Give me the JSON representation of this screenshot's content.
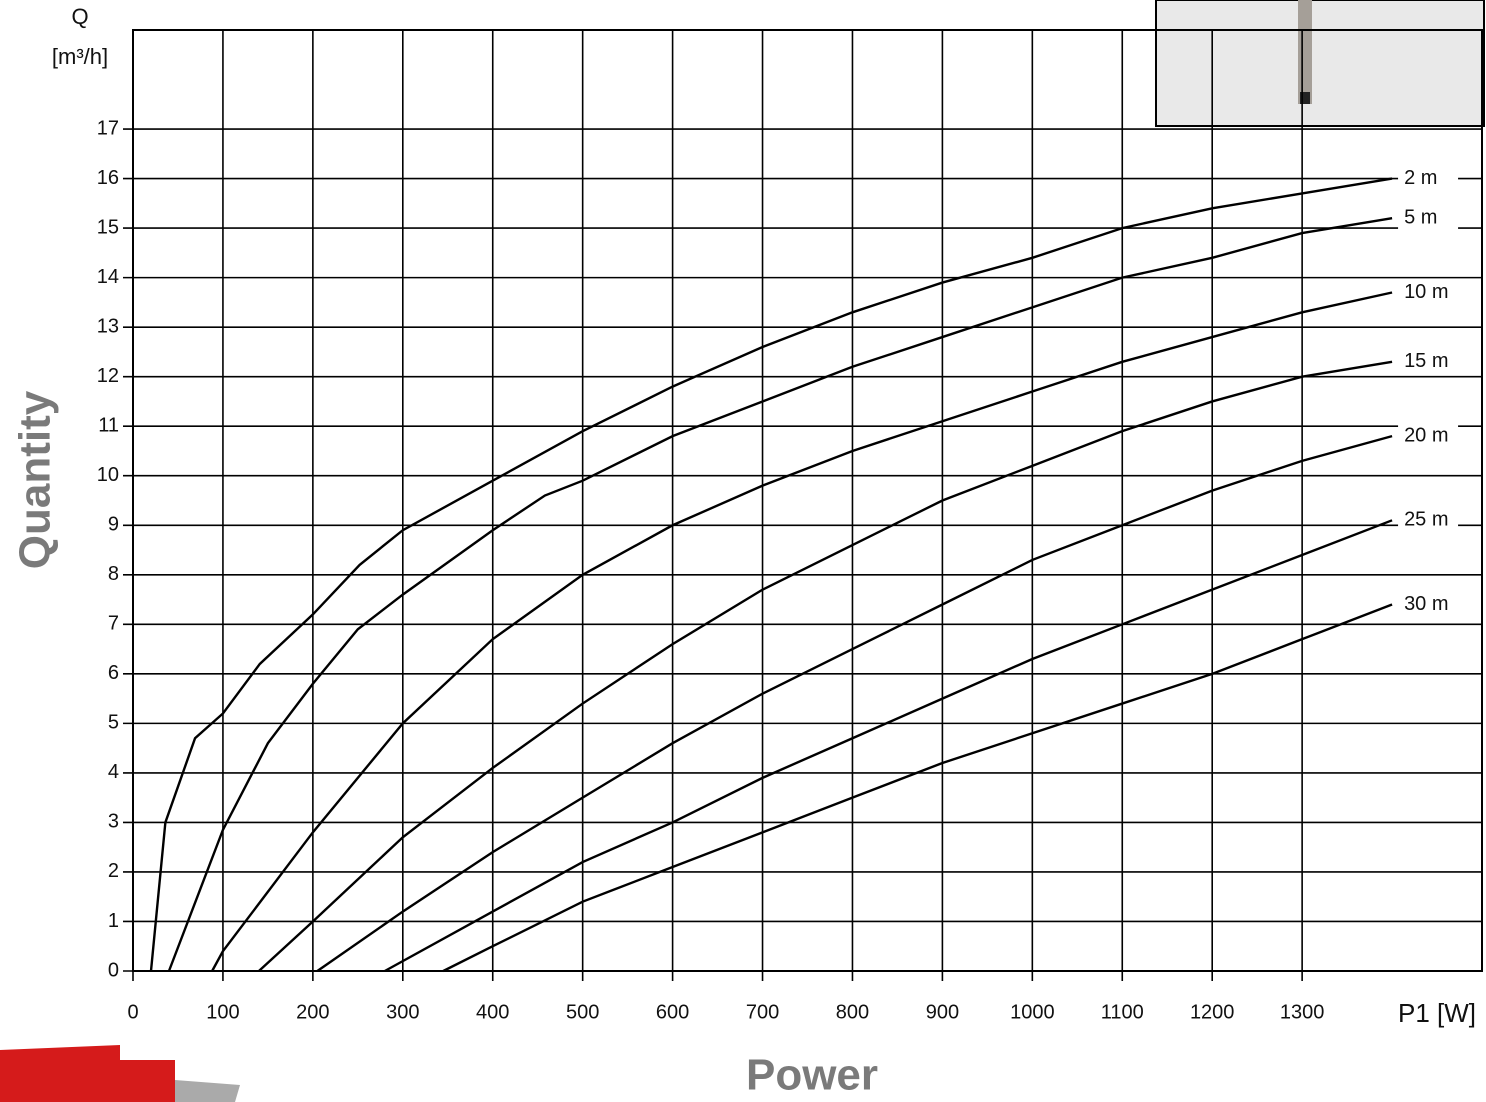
{
  "chart_data": {
    "type": "line",
    "x_title": "Power",
    "y_title": "Quantity",
    "x_axis_label": "P1 [W]",
    "y_axis_label_lines": [
      "Q",
      "[m³/h]"
    ],
    "xlim": [
      0,
      1500
    ],
    "ylim": [
      0,
      19
    ],
    "xticks": [
      0,
      100,
      200,
      300,
      400,
      500,
      600,
      700,
      800,
      900,
      1000,
      1100,
      1200,
      1300
    ],
    "yticks": [
      0,
      1,
      2,
      3,
      4,
      5,
      6,
      7,
      8,
      9,
      10,
      11,
      12,
      13,
      14,
      15,
      16,
      17
    ],
    "grid": true,
    "series": [
      {
        "name": "2 m",
        "color": "#000000",
        "x": [
          20,
          36,
          69,
          100,
          141,
          200,
          252,
          300,
          400,
          500,
          600,
          700,
          800,
          900,
          1000,
          1100,
          1200,
          1300,
          1400
        ],
        "values": [
          0,
          3,
          4.7,
          5.2,
          6.2,
          7.2,
          8.2,
          8.9,
          9.9,
          10.9,
          11.8,
          12.6,
          13.3,
          13.9,
          14.4,
          15.0,
          15.4,
          15.7,
          16.0
        ]
      },
      {
        "name": "5 m",
        "color": "#000000",
        "x": [
          40,
          100,
          150,
          200,
          250,
          300,
          400,
          458,
          500,
          600,
          700,
          800,
          900,
          1000,
          1100,
          1200,
          1300,
          1400
        ],
        "values": [
          0,
          2.85,
          4.6,
          5.8,
          6.9,
          7.6,
          8.9,
          9.6,
          9.9,
          10.8,
          11.5,
          12.2,
          12.8,
          13.4,
          14.0,
          14.4,
          14.9,
          15.2
        ]
      },
      {
        "name": "10 m",
        "color": "#000000",
        "x": [
          88,
          100,
          150,
          200,
          300,
          400,
          500,
          600,
          700,
          800,
          900,
          1000,
          1100,
          1200,
          1300,
          1400
        ],
        "values": [
          0,
          0.4,
          1.6,
          2.8,
          5.0,
          6.7,
          8.0,
          9.0,
          9.8,
          10.5,
          11.1,
          11.7,
          12.3,
          12.8,
          13.3,
          13.7
        ]
      },
      {
        "name": "15 m",
        "color": "#000000",
        "x": [
          140,
          200,
          300,
          400,
          500,
          600,
          700,
          800,
          900,
          1000,
          1100,
          1200,
          1300,
          1400
        ],
        "values": [
          0,
          1.0,
          2.7,
          4.1,
          5.4,
          6.6,
          7.7,
          8.6,
          9.5,
          10.2,
          10.9,
          11.5,
          12.0,
          12.3
        ]
      },
      {
        "name": "20 m",
        "color": "#000000",
        "x": [
          205,
          300,
          400,
          500,
          600,
          700,
          800,
          900,
          1000,
          1100,
          1200,
          1300,
          1400
        ],
        "values": [
          0,
          1.2,
          2.4,
          3.5,
          4.6,
          5.6,
          6.5,
          7.4,
          8.3,
          9.0,
          9.7,
          10.3,
          10.8
        ]
      },
      {
        "name": "25 m",
        "color": "#000000",
        "x": [
          280,
          400,
          500,
          600,
          700,
          800,
          900,
          1000,
          1100,
          1200,
          1300,
          1400
        ],
        "values": [
          0,
          1.2,
          2.2,
          3.0,
          3.9,
          4.7,
          5.5,
          6.3,
          7.0,
          7.7,
          8.4,
          9.1
        ]
      },
      {
        "name": "30 m",
        "color": "#000000",
        "x": [
          345,
          400,
          500,
          600,
          700,
          800,
          900,
          1000,
          1100,
          1200,
          1300,
          1400
        ],
        "values": [
          0,
          0.5,
          1.4,
          2.1,
          2.8,
          3.5,
          4.2,
          4.8,
          5.4,
          6.0,
          6.7,
          7.4
        ]
      }
    ]
  }
}
